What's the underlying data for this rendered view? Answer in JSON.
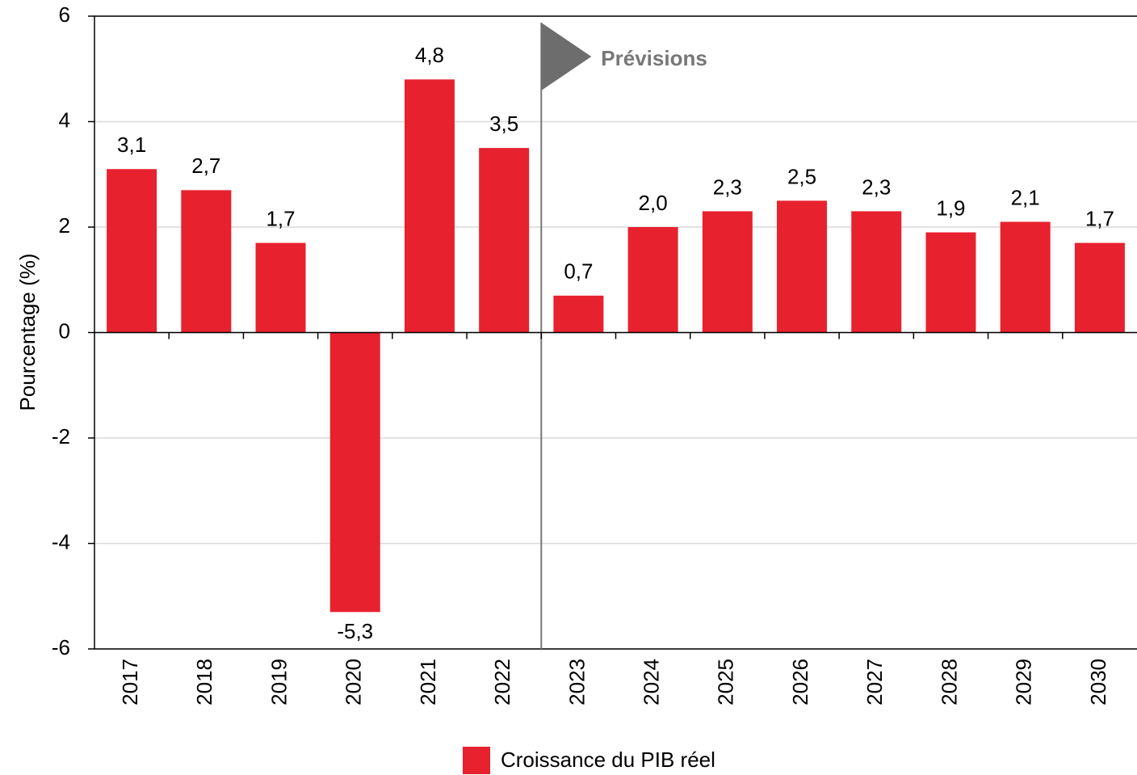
{
  "chart_data": {
    "type": "bar",
    "y_label": "Pourcentage (%)",
    "annotation": "Prévisions",
    "categories": [
      "2017",
      "2018",
      "2019",
      "2020",
      "2021",
      "2022",
      "2023",
      "2024",
      "2025",
      "2026",
      "2027",
      "2028",
      "2029",
      "2030"
    ],
    "series": [
      {
        "name": "Croissance du PIB réel",
        "color": "#e8212e",
        "values": [
          3.1,
          2.7,
          1.7,
          -5.3,
          4.8,
          3.5,
          0.7,
          2.0,
          2.3,
          2.5,
          2.3,
          1.9,
          2.1,
          1.7
        ],
        "value_labels": [
          "3,1",
          "2,7",
          "1,7",
          "-5,3",
          "4,8",
          "3,5",
          "0,7",
          "2,0",
          "2,3",
          "2,5",
          "2,3",
          "1,9",
          "2,1",
          "1,7"
        ]
      }
    ],
    "ylim": [
      -6,
      6
    ],
    "yticks": [
      -6,
      -4,
      -2,
      0,
      2,
      4,
      6
    ],
    "grid": true,
    "legend": "bottom"
  }
}
